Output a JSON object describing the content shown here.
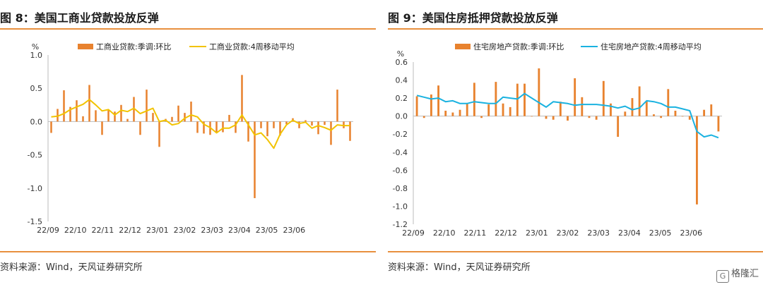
{
  "figures": [
    {
      "title": "图 8：美国工商业贷款投放反弹",
      "source": "资料来源：Wind，天风证券研究所"
    },
    {
      "title": "图 9：美国住房抵押贷款投放反弹",
      "source": "资料来源：Wind，天风证券研究所"
    }
  ],
  "watermark": {
    "icon": "gelonghui-logo-icon",
    "text": "格隆汇"
  },
  "colors": {
    "bar": "#e8822e",
    "line_left": "#f2c300",
    "line_right": "#1ab2e0",
    "rule": "#e8903e",
    "axis": "#bbbbbb"
  },
  "chart_data": [
    {
      "type": "bar",
      "ylabel": "%",
      "ylim": [
        -1.5,
        1.0
      ],
      "yticks": [
        "1.0",
        "0.5",
        "0.0",
        "-0.5",
        "-1.0",
        "-1.5"
      ],
      "ytick_values": [
        1.0,
        0.5,
        0.0,
        -0.5,
        -1.0,
        -1.5
      ],
      "xtick_labels": [
        "22/09",
        "22/10",
        "22/11",
        "22/12",
        "23/01",
        "23/02",
        "23/03",
        "23/04",
        "23/05",
        "23/06"
      ],
      "xtick_positions": [
        0,
        4.3,
        8.6,
        12.9,
        17.2,
        21.5,
        25.8,
        30.1,
        34.4,
        38.7
      ],
      "legend_position": "top",
      "series": [
        {
          "name": "工商业贷款:季调:环比",
          "kind": "bar",
          "values": [
            -0.17,
            0.19,
            0.47,
            0.22,
            0.32,
            0.08,
            0.55,
            0.17,
            -0.2,
            0.18,
            0.15,
            0.25,
            0.04,
            0.37,
            -0.2,
            0.48,
            0.13,
            -0.38,
            0.04,
            0.07,
            0.24,
            0.13,
            0.3,
            -0.17,
            -0.18,
            -0.2,
            -0.17,
            -0.16,
            0.1,
            -0.17,
            0.7,
            -0.3,
            -1.15,
            -0.1,
            -0.22,
            -0.1,
            -0.21,
            -0.04,
            0.05,
            -0.1,
            0.02,
            -0.06,
            -0.19,
            -0.05,
            -0.35,
            0.48,
            -0.1,
            -0.29
          ]
        },
        {
          "name": "工商业贷款:4周移动平均",
          "kind": "line",
          "values": [
            0.07,
            0.08,
            0.12,
            0.18,
            0.22,
            0.26,
            0.33,
            0.25,
            0.16,
            0.18,
            0.1,
            0.17,
            0.15,
            0.2,
            0.12,
            0.16,
            0.2,
            0.0,
            0.02,
            -0.05,
            -0.03,
            0.05,
            0.1,
            0.07,
            -0.04,
            -0.09,
            -0.17,
            -0.1,
            -0.1,
            -0.05,
            0.1,
            -0.05,
            -0.2,
            -0.17,
            -0.27,
            -0.4,
            -0.19,
            -0.05,
            0.02,
            -0.03,
            -0.01,
            -0.1,
            -0.06,
            -0.09,
            -0.13,
            -0.05,
            -0.06,
            -0.06
          ]
        }
      ]
    },
    {
      "type": "bar",
      "ylabel": "%",
      "ylim": [
        -1.2,
        0.6
      ],
      "yticks": [
        "0.6",
        "0.4",
        "0.2",
        "0.0",
        "-0.2",
        "-0.4",
        "-0.6",
        "-0.8",
        "-1.0",
        "-1.2"
      ],
      "ytick_values": [
        0.6,
        0.4,
        0.2,
        0.0,
        -0.2,
        -0.4,
        -0.6,
        -0.8,
        -1.0,
        -1.2
      ],
      "xtick_labels": [
        "22/09",
        "22/10",
        "22/11",
        "22/12",
        "23/01",
        "23/02",
        "23/03",
        "23/04",
        "23/05",
        "23/06"
      ],
      "xtick_positions": [
        0,
        4.3,
        8.6,
        12.9,
        17.2,
        21.5,
        25.8,
        30.1,
        34.4,
        38.7
      ],
      "legend_position": "top",
      "series": [
        {
          "name": "住宅房地产贷款:季调:环比",
          "kind": "bar",
          "values": [
            0.22,
            -0.02,
            0.24,
            0.34,
            0.06,
            0.04,
            0.07,
            0.14,
            0.37,
            -0.02,
            0.13,
            0.38,
            0.14,
            0.1,
            0.36,
            0.36,
            0.0,
            0.53,
            -0.03,
            -0.04,
            0.16,
            -0.05,
            0.42,
            0.21,
            -0.02,
            -0.04,
            0.39,
            0.14,
            -0.23,
            0.05,
            0.2,
            0.33,
            0.17,
            0.02,
            -0.02,
            0.3,
            0.06,
            0.0,
            -0.04,
            -0.98,
            0.07,
            0.13,
            -0.17
          ]
        },
        {
          "name": "住宅房地产贷款:4周移动平均",
          "kind": "line",
          "values": [
            0.23,
            0.21,
            0.19,
            0.2,
            0.16,
            0.17,
            0.14,
            0.14,
            0.16,
            0.15,
            0.14,
            0.14,
            0.21,
            0.2,
            0.19,
            0.25,
            0.2,
            0.15,
            0.1,
            0.16,
            0.15,
            0.14,
            0.12,
            0.13,
            0.13,
            0.13,
            0.12,
            0.11,
            0.09,
            0.11,
            0.07,
            0.09,
            0.17,
            0.16,
            0.14,
            0.1,
            0.1,
            0.08,
            0.06,
            -0.17,
            -0.23,
            -0.21,
            -0.24
          ]
        }
      ]
    }
  ]
}
